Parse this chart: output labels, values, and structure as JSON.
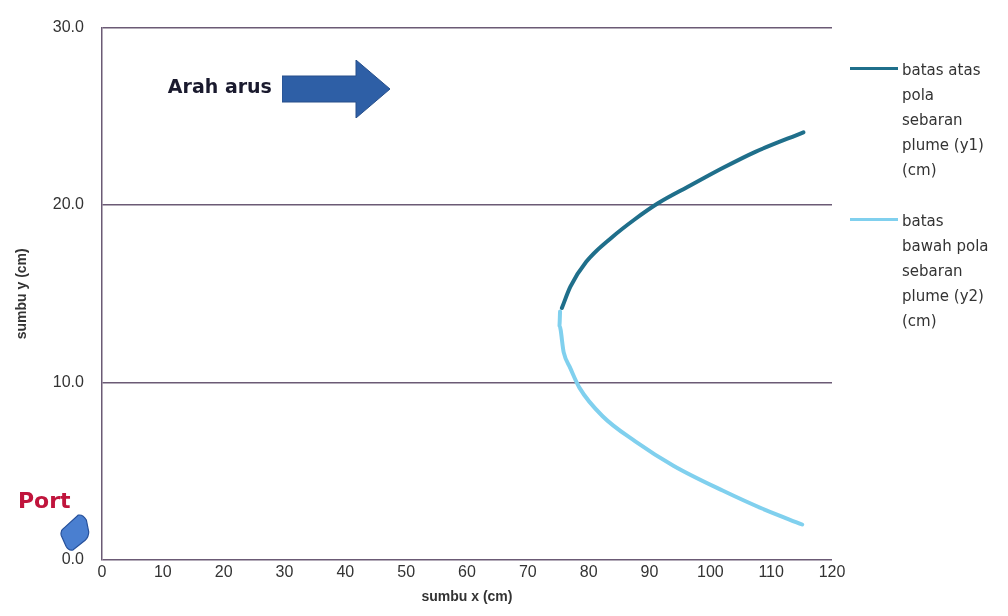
{
  "chart_data": {
    "type": "line",
    "xlabel": "sumbu x (cm)",
    "ylabel": "sumbu y (cm)",
    "xlim": [
      0,
      120
    ],
    "xticks": [
      0,
      10,
      20,
      30,
      40,
      50,
      60,
      70,
      80,
      90,
      100,
      110,
      120
    ],
    "ylim": [
      0,
      30
    ],
    "yticks": [
      {
        "value": 0,
        "label": "0.0"
      },
      {
        "value": 10,
        "label": "10.0"
      },
      {
        "value": 20,
        "label": "20.0"
      },
      {
        "value": 30,
        "label": "30.0"
      }
    ],
    "grid": "y",
    "legend": "right",
    "marker": "none",
    "line_style": "solid",
    "annotations": [
      "Arah arus",
      "Port"
    ],
    "series": [
      {
        "name": "batas atas pola sebaran plume (y1) (cm)",
        "color": "#1f6f8b",
        "x": [
          75.6,
          77.0,
          79.6,
          83.9,
          87.6,
          91.4,
          96.7,
          102.1,
          107.4,
          115.3
        ],
        "values": [
          14.2,
          15.4,
          16.8,
          18.2,
          19.2,
          20.1,
          21.1,
          22.1,
          23.0,
          24.1
        ]
      },
      {
        "name": "batas bawah pola sebaran plume (y2) (cm)",
        "color": "#80d0ee",
        "x": [
          75.3,
          75.2,
          75.9,
          77.0,
          78.5,
          82.3,
          87.6,
          94.0,
          102.1,
          108.5,
          115.1
        ],
        "values": [
          14.0,
          13.2,
          11.7,
          10.8,
          9.7,
          8.1,
          6.7,
          5.3,
          3.9,
          2.9,
          2.0
        ]
      }
    ]
  }
}
